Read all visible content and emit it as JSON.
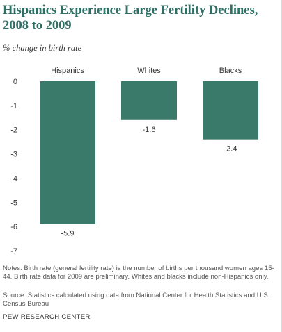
{
  "title": "Hispanics Experience Large Fertility Declines, 2008 to 2009",
  "subtitle": "% change in birth rate",
  "notes": "Notes: Birth rate (general fertility rate) is the number of births per thousand women ages 15-44. Birth rate data for 2009 are preliminary. Whites and blacks include non-Hispanics only.",
  "source": "Source: Statistics calculated using data from National Center for Health Statistics and U.S. Census Bureau",
  "org": "PEW RESEARCH CENTER",
  "chart_data": {
    "type": "bar",
    "categories": [
      "Hispanics",
      "Whites",
      "Blacks"
    ],
    "values": [
      -5.9,
      -1.6,
      -2.4
    ],
    "value_labels": [
      "-5.9",
      "-1.6",
      "-2.4"
    ],
    "ylim": [
      -7,
      0
    ],
    "yticks": [
      0,
      -1,
      -2,
      -3,
      -4,
      -5,
      -6,
      -7
    ],
    "category_position": "top",
    "grid": false,
    "bar_color": "#3a7a6a"
  }
}
